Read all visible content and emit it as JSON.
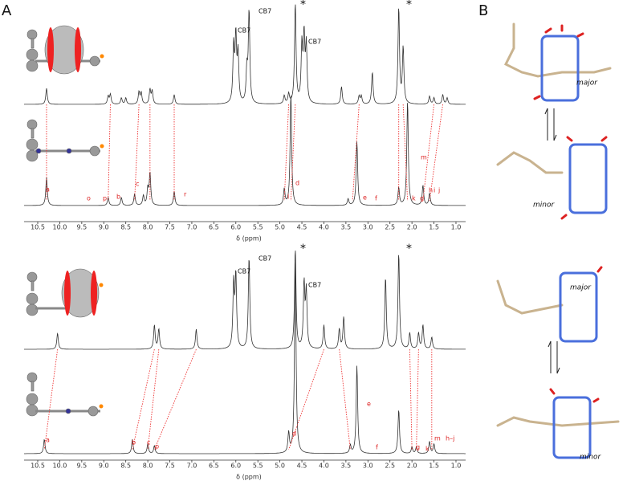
{
  "panel_labels": [
    "A",
    "B"
  ],
  "spectra": [
    {
      "axis_label": "δ (ppm)",
      "ticks": [
        "10.5",
        "10.0",
        "9.5",
        "9.0",
        "8.5",
        "8.0",
        "7.5",
        "7.0",
        "6.5",
        "6.0",
        "5.5",
        "5.0",
        "4.5",
        "4.0",
        "3.5",
        "3.0",
        "2.5",
        "2.0",
        "1.5",
        "1.0"
      ],
      "annotations": [
        "CB7",
        "CB7",
        "*",
        "CB7",
        "*"
      ],
      "peak_labels": [
        "a",
        "o",
        "p",
        "b",
        "c",
        "r",
        "l",
        "d",
        "e",
        "f",
        "k",
        "g",
        "m",
        "h",
        "i",
        "j"
      ]
    },
    {
      "axis_label": "δ (ppm)",
      "ticks": [
        "10.5",
        "10.0",
        "9.5",
        "9.0",
        "8.5",
        "8.0",
        "7.5",
        "7.0",
        "6.5",
        "6.0",
        "5.5",
        "5.0",
        "4.5",
        "4.0",
        "3.5",
        "3.0",
        "2.5",
        "2.0",
        "1.5",
        "1.0"
      ],
      "annotations": [
        "CB7",
        "CB7",
        "*",
        "CB7",
        "*"
      ],
      "peak_labels": [
        "a",
        "b",
        "c",
        "p",
        "d",
        "e",
        "f",
        "g",
        "k",
        "m",
        "h–j"
      ]
    }
  ],
  "structures": {
    "top": [
      "major",
      "minor"
    ],
    "bottom": [
      "major",
      "minor"
    ]
  }
}
